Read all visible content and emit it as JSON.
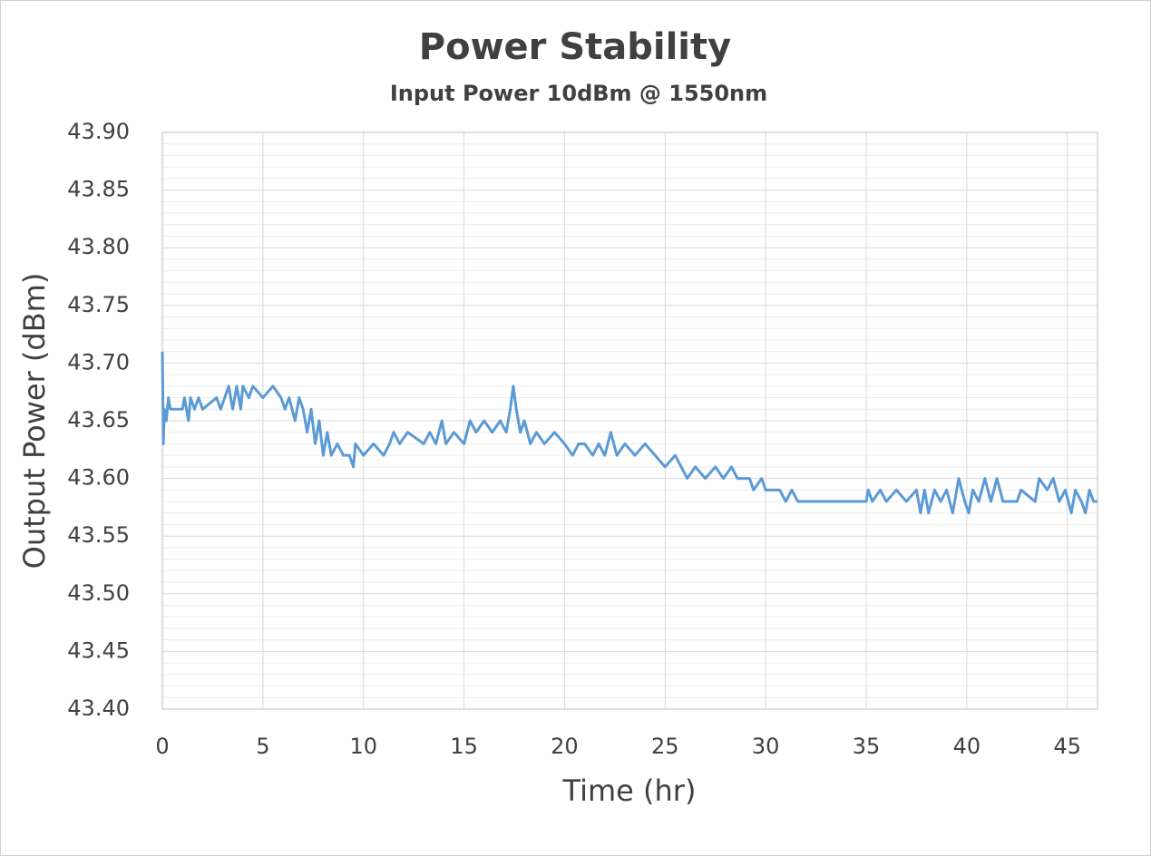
{
  "chart_data": {
    "type": "line",
    "title": "Power Stability",
    "subtitle": "Input Power 10dBm @ 1550nm",
    "x_label": "Time (hr)",
    "y_label": "Output Power (dBm)",
    "xlim": [
      0,
      46.5
    ],
    "ylim": [
      43.4,
      43.9
    ],
    "xticks": [
      0,
      5,
      10,
      15,
      20,
      25,
      30,
      35,
      40,
      45
    ],
    "yticks": [
      {
        "value": 43.4,
        "label": "43.40"
      },
      {
        "value": 43.45,
        "label": "43.45"
      },
      {
        "value": 43.5,
        "label": "43.50"
      },
      {
        "value": 43.55,
        "label": "43.55"
      },
      {
        "value": 43.6,
        "label": "43.60"
      },
      {
        "value": 43.65,
        "label": "43.65"
      },
      {
        "value": 43.7,
        "label": "43.70"
      },
      {
        "value": 43.75,
        "label": "43.75"
      },
      {
        "value": 43.8,
        "label": "43.80"
      },
      {
        "value": 43.85,
        "label": "43.85"
      },
      {
        "value": 43.9,
        "label": "43.90"
      }
    ],
    "grid": true,
    "minor_grid": true,
    "color": "#5b9bd5",
    "x": [
      0,
      0.05,
      0.1,
      0.2,
      0.3,
      0.4,
      1.0,
      1.1,
      1.3,
      1.4,
      1.6,
      1.8,
      2.0,
      2.7,
      2.9,
      3.3,
      3.5,
      3.7,
      3.9,
      4.0,
      4.3,
      4.5,
      5.0,
      5.5,
      5.9,
      6.1,
      6.3,
      6.6,
      6.8,
      7.0,
      7.2,
      7.4,
      7.6,
      7.8,
      8.0,
      8.2,
      8.4,
      8.7,
      9.0,
      9.3,
      9.5,
      9.6,
      10.0,
      10.5,
      11.0,
      11.3,
      11.5,
      11.8,
      12.2,
      13.0,
      13.3,
      13.6,
      13.9,
      14.1,
      14.5,
      15.0,
      15.3,
      15.6,
      16.0,
      16.4,
      16.8,
      17.1,
      17.3,
      17.45,
      17.6,
      17.8,
      18.0,
      18.3,
      18.6,
      19.0,
      19.5,
      20.0,
      20.4,
      20.7,
      21.0,
      21.4,
      21.7,
      22.0,
      22.3,
      22.6,
      23.0,
      23.5,
      24.0,
      24.5,
      25.0,
      25.5,
      25.8,
      26.1,
      26.5,
      27.0,
      27.5,
      27.9,
      28.3,
      28.6,
      29.2,
      29.4,
      29.8,
      30.0,
      30.7,
      31.0,
      31.3,
      31.6,
      35.0,
      35.1,
      35.3,
      35.7,
      36.0,
      36.5,
      37.0,
      37.5,
      37.7,
      37.9,
      38.1,
      38.4,
      38.7,
      39.0,
      39.3,
      39.6,
      39.9,
      40.1,
      40.3,
      40.6,
      40.9,
      41.2,
      41.5,
      41.8,
      42.5,
      42.7,
      43.4,
      43.6,
      44.0,
      44.3,
      44.6,
      44.9,
      45.2,
      45.4,
      45.7,
      45.9,
      46.1,
      46.3,
      46.5
    ],
    "values": [
      43.71,
      43.63,
      43.66,
      43.65,
      43.67,
      43.66,
      43.66,
      43.67,
      43.65,
      43.67,
      43.66,
      43.67,
      43.66,
      43.67,
      43.66,
      43.68,
      43.66,
      43.68,
      43.66,
      43.68,
      43.67,
      43.68,
      43.67,
      43.68,
      43.67,
      43.66,
      43.67,
      43.65,
      43.67,
      43.66,
      43.64,
      43.66,
      43.63,
      43.65,
      43.62,
      43.64,
      43.62,
      43.63,
      43.62,
      43.62,
      43.61,
      43.63,
      43.62,
      43.63,
      43.62,
      43.63,
      43.64,
      43.63,
      43.64,
      43.63,
      43.64,
      43.63,
      43.65,
      43.63,
      43.64,
      43.63,
      43.65,
      43.64,
      43.65,
      43.64,
      43.65,
      43.64,
      43.66,
      43.68,
      43.66,
      43.64,
      43.65,
      43.63,
      43.64,
      43.63,
      43.64,
      43.63,
      43.62,
      43.63,
      43.63,
      43.62,
      43.63,
      43.62,
      43.64,
      43.62,
      43.63,
      43.62,
      43.63,
      43.62,
      43.61,
      43.62,
      43.61,
      43.6,
      43.61,
      43.6,
      43.61,
      43.6,
      43.61,
      43.6,
      43.6,
      43.59,
      43.6,
      43.59,
      43.59,
      43.58,
      43.59,
      43.58,
      43.58,
      43.59,
      43.58,
      43.59,
      43.58,
      43.59,
      43.58,
      43.59,
      43.57,
      43.59,
      43.57,
      43.59,
      43.58,
      43.59,
      43.57,
      43.6,
      43.58,
      43.57,
      43.59,
      43.58,
      43.6,
      43.58,
      43.6,
      43.58,
      43.58,
      43.59,
      43.58,
      43.6,
      43.59,
      43.6,
      43.58,
      43.59,
      43.57,
      43.59,
      43.58,
      43.57,
      43.59,
      43.58,
      43.58
    ]
  }
}
